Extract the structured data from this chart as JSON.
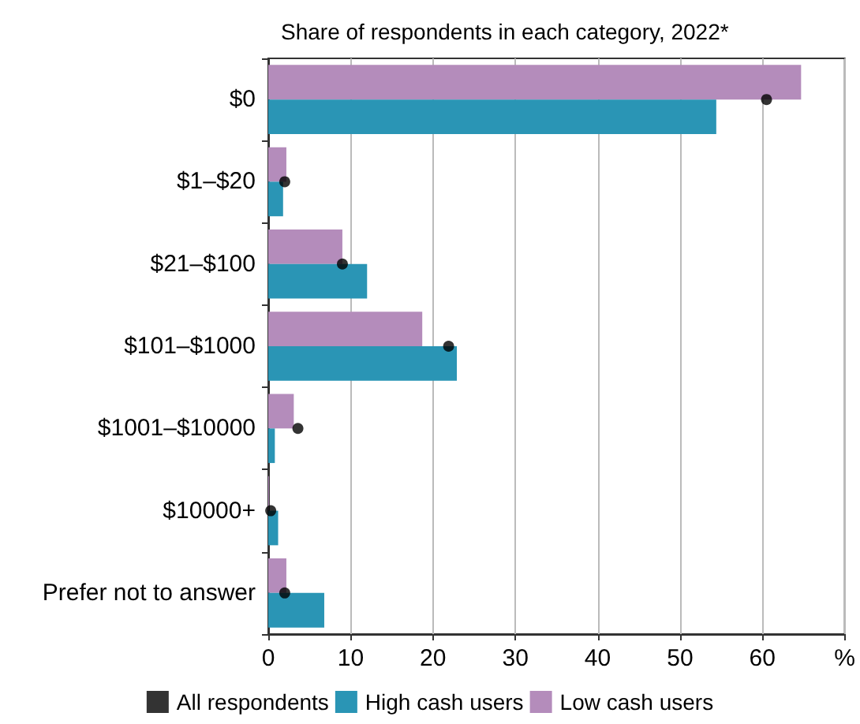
{
  "chart_data": {
    "type": "bar",
    "orientation": "horizontal",
    "subtitle": "Share of respondents in each category, 2022*",
    "categories": [
      "$0",
      "$1–$20",
      "$21–$100",
      "$101–$1000",
      "$1001–$10000",
      "$10000+",
      "Prefer not to answer"
    ],
    "series": [
      {
        "name": "All respondents",
        "type": "scatter",
        "color": "#000000",
        "values": [
          60.5,
          2.0,
          9.0,
          21.9,
          3.6,
          0.3,
          2.0
        ]
      },
      {
        "name": "High cash users",
        "color": "#2a95b5",
        "values": [
          54.4,
          1.8,
          12.0,
          22.9,
          0.8,
          1.2,
          6.8
        ]
      },
      {
        "name": "Low cash users",
        "color": "#b48cbb",
        "values": [
          64.7,
          2.2,
          9.0,
          18.7,
          3.1,
          0.1,
          2.2
        ]
      }
    ],
    "xlim": [
      0,
      70
    ],
    "xticks": [
      0,
      10,
      20,
      30,
      40,
      50,
      60,
      {
        "value": 70,
        "label": "%"
      }
    ],
    "grid": "x",
    "legend": "bottom",
    "marker": "circle"
  }
}
